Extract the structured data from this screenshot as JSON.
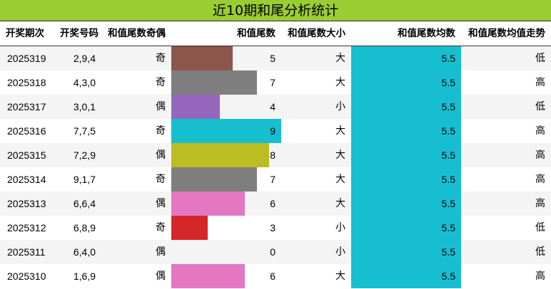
{
  "title": "近10期和尾分析统计",
  "colors": {
    "title_bg": "#9acd32",
    "avg_bar": "#17becf"
  },
  "headers": {
    "period": "开奖期次",
    "numbers": "开奖号码",
    "parity": "和值尾数奇偶",
    "tail": "和值尾数",
    "size": "和值尾数大小",
    "avg": "和值尾数均数",
    "trend": "和值尾数均值走势"
  },
  "tail_scale_max": 9,
  "rows": [
    {
      "period": "2025319",
      "numbers": "2,9,4",
      "parity": "奇",
      "tail": 5,
      "size": "大",
      "avg": "5.5",
      "trend": "低",
      "color": "#8c564b"
    },
    {
      "period": "2025318",
      "numbers": "4,3,0",
      "parity": "奇",
      "tail": 7,
      "size": "大",
      "avg": "5.5",
      "trend": "高",
      "color": "#7f7f7f"
    },
    {
      "period": "2025317",
      "numbers": "3,0,1",
      "parity": "偶",
      "tail": 4,
      "size": "小",
      "avg": "5.5",
      "trend": "低",
      "color": "#9467bd"
    },
    {
      "period": "2025316",
      "numbers": "7,7,5",
      "parity": "奇",
      "tail": 9,
      "size": "大",
      "avg": "5.5",
      "trend": "高",
      "color": "#17becf"
    },
    {
      "period": "2025315",
      "numbers": "7,2,9",
      "parity": "偶",
      "tail": 8,
      "size": "大",
      "avg": "5.5",
      "trend": "高",
      "color": "#bcbd22"
    },
    {
      "period": "2025314",
      "numbers": "9,1,7",
      "parity": "奇",
      "tail": 7,
      "size": "大",
      "avg": "5.5",
      "trend": "高",
      "color": "#7f7f7f"
    },
    {
      "period": "2025313",
      "numbers": "6,6,4",
      "parity": "偶",
      "tail": 6,
      "size": "大",
      "avg": "5.5",
      "trend": "高",
      "color": "#e377c2"
    },
    {
      "period": "2025312",
      "numbers": "6,8,9",
      "parity": "奇",
      "tail": 3,
      "size": "小",
      "avg": "5.5",
      "trend": "低",
      "color": "#d62728"
    },
    {
      "period": "2025311",
      "numbers": "6,4,0",
      "parity": "偶",
      "tail": 0,
      "size": "小",
      "avg": "5.5",
      "trend": "低",
      "color": "#1f77b4"
    },
    {
      "period": "2025310",
      "numbers": "1,6,9",
      "parity": "偶",
      "tail": 6,
      "size": "大",
      "avg": "5.5",
      "trend": "高",
      "color": "#e377c2"
    }
  ]
}
